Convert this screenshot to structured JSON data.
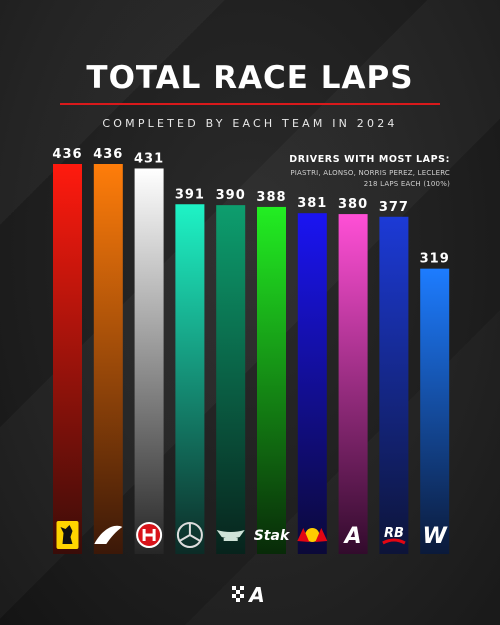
{
  "header": {
    "title": "TOTAL RACE LAPS",
    "subtitle": "COMPLETED BY EACH TEAM IN 2024"
  },
  "note": {
    "heading": "DRIVERS WITH MOST LAPS:",
    "line1": "PIASTRI, ALONSO, NORRIS PEREZ, LECLERC",
    "line2": "218 LAPS EACH (100%)"
  },
  "footer": {
    "logo_text": "A",
    "logo_icon": "checkered-flag-icon"
  },
  "chart_data": {
    "type": "bar",
    "title": "TOTAL RACE LAPS",
    "subtitle": "COMPLETED BY EACH TEAM IN 2024",
    "ylim": [
      0,
      436
    ],
    "grid": false,
    "categories": [
      "Ferrari",
      "McLaren",
      "Haas",
      "Mercedes",
      "Aston Martin",
      "Stake",
      "Red Bull",
      "Alpine",
      "RB",
      "Williams"
    ],
    "values": [
      436,
      436,
      431,
      391,
      390,
      388,
      381,
      380,
      377,
      319
    ],
    "value_labels": [
      "436",
      "436",
      "431",
      "391",
      "390",
      "388",
      "381",
      "380",
      "377",
      "319"
    ],
    "logo_icons": [
      "ferrari-horse-icon",
      "mclaren-swoosh-icon",
      "haas-logo-icon",
      "mercedes-star-icon",
      "aston-martin-wings-icon",
      "stake-logo-icon",
      "red-bull-icon",
      "alpine-logo-icon",
      "rb-logo-icon",
      "williams-logo-icon"
    ],
    "logo_texts": [
      "",
      "",
      "",
      "",
      "",
      "Stak",
      "",
      "A",
      "RB",
      "W"
    ],
    "colors": [
      [
        "#ff1a0e",
        "#3a0c08"
      ],
      [
        "#ff7d0a",
        "#3b1808"
      ],
      [
        "#ffffff",
        "#262626"
      ],
      [
        "#1ef3c6",
        "#0c2b26"
      ],
      [
        "#0d9e6e",
        "#07231c"
      ],
      [
        "#22ee22",
        "#082a08"
      ],
      [
        "#1a14f2",
        "#0b0938"
      ],
      [
        "#ff4fd6",
        "#320b2c"
      ],
      [
        "#1c3ad6",
        "#0d1438"
      ],
      [
        "#1d7cff",
        "#0b1a3a"
      ]
    ]
  }
}
